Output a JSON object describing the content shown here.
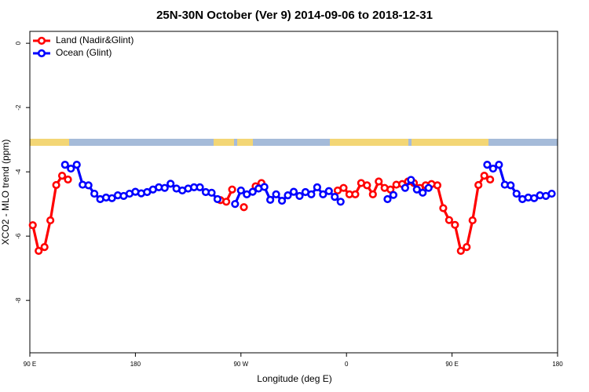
{
  "chart_data": {
    "type": "line",
    "title": "25N-30N October (Ver 9)   2014-09-06 to 2018-12-31",
    "x_label": "Longitude (deg E)",
    "y_label": "XCO2 - MLO trend (ppm)",
    "xlim": [
      90,
      540
    ],
    "ylim": [
      -9.63,
      0.37
    ],
    "xticks": [
      {
        "value": 90,
        "label": "90 E"
      },
      180,
      {
        "value": 270,
        "label": "90 W"
      },
      {
        "value": 360,
        "label": "0"
      },
      {
        "value": 450,
        "label": "90 E"
      },
      {
        "value": 540,
        "label": "180"
      }
    ],
    "yticks": [
      0,
      -2,
      -4,
      -6,
      -8
    ],
    "legend": "top-left",
    "series": [
      {
        "name": "Land (Nadir&Glint)",
        "color": "#ff0000",
        "x": [
          92.5,
          97.5,
          102.5,
          107.5,
          112.5,
          117.5,
          122.5,
          127.5,
          252.5,
          257.5,
          262.5,
          267.5,
          272.5,
          277.5,
          282.5,
          287.5,
          292.5,
          352.5,
          357.5,
          362.5,
          367.5,
          372.5,
          377.5,
          382.5,
          387.5,
          392.5,
          397.5,
          402.5,
          407.5,
          412.5,
          417.5,
          422.5,
          427.5,
          432.5,
          437.5,
          442.5,
          447.5,
          452.5,
          457.5,
          462.5,
          467.5,
          472.5,
          477.5,
          482.5
        ],
        "values": [
          -5.66,
          -6.46,
          -6.34,
          -5.51,
          -4.41,
          -4.12,
          -4.24,
          null,
          -4.88,
          -4.93,
          -4.55,
          null,
          -5.1,
          null,
          -4.45,
          -4.35,
          null,
          -4.58,
          -4.5,
          -4.7,
          -4.7,
          -4.35,
          -4.42,
          -4.7,
          -4.3,
          -4.5,
          -4.55,
          -4.4,
          -4.38,
          -4.3,
          -4.35,
          -4.5,
          -4.42,
          -4.38,
          -4.42,
          -5.13,
          -5.5,
          -5.65,
          -6.46,
          -6.34,
          -5.51,
          -4.41,
          -4.12,
          -4.24
        ]
      },
      {
        "name": "Ocean (Glint)",
        "color": "#0000ff",
        "x": [
          120,
          125,
          130,
          135,
          140,
          145,
          150,
          155,
          160,
          165,
          170,
          175,
          180,
          185,
          190,
          195,
          200,
          205,
          210,
          215,
          220,
          225,
          230,
          235,
          240,
          245,
          250,
          255,
          265,
          270,
          275,
          280,
          285,
          290,
          295,
          300,
          305,
          310,
          315,
          320,
          325,
          330,
          335,
          340,
          345,
          350,
          355,
          360,
          395,
          400,
          405,
          410,
          415,
          420,
          425,
          430,
          435,
          480,
          485,
          490,
          495,
          500,
          505,
          510,
          515,
          520,
          525,
          530,
          535
        ],
        "values": [
          -3.78,
          -3.9,
          -3.78,
          -4.4,
          -4.42,
          -4.68,
          -4.85,
          -4.8,
          -4.82,
          -4.73,
          -4.75,
          -4.68,
          -4.62,
          -4.67,
          -4.63,
          -4.55,
          -4.48,
          -4.5,
          -4.37,
          -4.52,
          -4.58,
          -4.52,
          -4.48,
          -4.48,
          -4.63,
          -4.65,
          -4.85,
          null,
          -5.0,
          -4.58,
          -4.7,
          -4.62,
          -4.52,
          -4.47,
          -4.87,
          -4.7,
          -4.9,
          -4.73,
          -4.62,
          -4.75,
          -4.63,
          -4.7,
          -4.48,
          -4.7,
          -4.6,
          -4.78,
          -4.93,
          null,
          -4.85,
          -4.72,
          null,
          -4.5,
          -4.25,
          -4.55,
          -4.65,
          -4.5,
          null,
          -3.78,
          -3.9,
          -3.78,
          -4.4,
          -4.42,
          -4.68,
          -4.85,
          -4.8,
          -4.82,
          -4.73,
          -4.75,
          -4.68
        ]
      }
    ]
  }
}
